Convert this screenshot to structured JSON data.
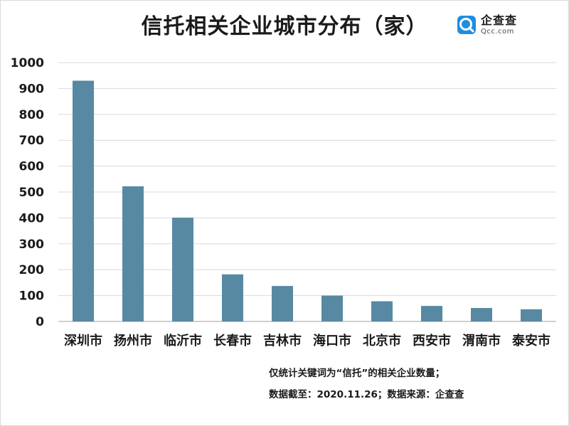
{
  "header": {
    "title": "信托相关企业城市分布（家）",
    "logo_name": "企查查",
    "logo_domain": "Qcc.com"
  },
  "colors": {
    "bar": "#5789a3",
    "grid": "#d9d9d9",
    "axis": "#bfbfbf",
    "logo_accent": "#1f8ee0"
  },
  "chart_data": {
    "type": "bar",
    "title": "信托相关企业城市分布（家）",
    "categories": [
      "深圳市",
      "扬州市",
      "临沂市",
      "长春市",
      "吉林市",
      "海口市",
      "北京市",
      "西安市",
      "渭南市",
      "泰安市"
    ],
    "values": [
      930,
      522,
      401,
      182,
      137,
      100,
      78,
      60,
      52,
      47
    ],
    "ylim": [
      0,
      1000
    ],
    "yticks": [
      0,
      100,
      200,
      300,
      400,
      500,
      600,
      700,
      800,
      900,
      1000
    ],
    "grid": true,
    "legend": "none"
  },
  "footer": {
    "note1": "仅统计关键词为“信托”的相关企业数量；",
    "note2": "数据截至：2020.11.26；数据来源：企查查"
  }
}
